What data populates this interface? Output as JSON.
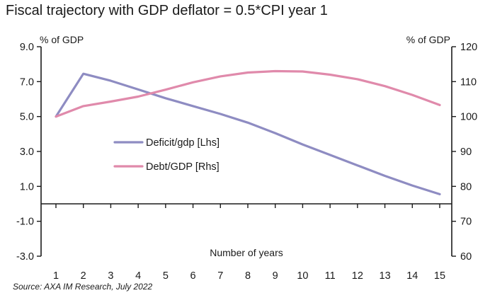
{
  "chart_data": {
    "type": "line",
    "title": "Fiscal trajectory with GDP deflator = 0.5*CPI year 1",
    "xlabel": "Number of years",
    "ylabel_left": "% of GDP",
    "ylabel_right": "% of GDP",
    "x": [
      1,
      2,
      3,
      4,
      5,
      6,
      7,
      8,
      9,
      10,
      11,
      12,
      13,
      14,
      15
    ],
    "x_tick_labels": [
      "1",
      "2",
      "3",
      "4",
      "5",
      "6",
      "7",
      "8",
      "9",
      "10",
      "11",
      "12",
      "13",
      "14",
      "15"
    ],
    "ylim_left": [
      -3,
      9
    ],
    "yticks_left": [
      "9.0",
      "7.0",
      "5.0",
      "3.0",
      "1.0",
      "-1.0",
      "-3.0"
    ],
    "ylim_right": [
      60,
      120
    ],
    "yticks_right": [
      "120",
      "110",
      "100",
      "90",
      "80",
      "70",
      "60"
    ],
    "series": [
      {
        "name": "Deficit/gdp [Lhs]",
        "axis": "left",
        "color": "#8e8cc2",
        "values": [
          5.0,
          7.45,
          7.05,
          6.55,
          6.05,
          5.6,
          5.15,
          4.65,
          4.05,
          3.4,
          2.8,
          2.2,
          1.6,
          1.05,
          0.55
        ]
      },
      {
        "name": "Debt/GDP [Rhs]",
        "axis": "right",
        "color": "#e08aab",
        "values": [
          100.0,
          103.0,
          104.3,
          105.7,
          107.7,
          109.8,
          111.5,
          112.6,
          113.0,
          112.9,
          112.0,
          110.7,
          108.7,
          106.2,
          103.3
        ]
      }
    ],
    "legend": "center-left",
    "grid": false,
    "source": "Source: AXA IM Research, July 2022"
  }
}
